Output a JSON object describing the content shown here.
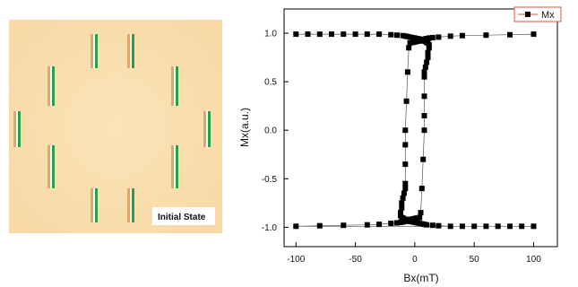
{
  "simulation": {
    "label": "Initial State",
    "background_color": "#f8d9a6",
    "bar_green": "#2f9e4a",
    "bar_highlight": "#ffffff",
    "bar_shadow": "#dba96a"
  },
  "chart_data": {
    "type": "scatter",
    "title": "",
    "xlabel": "Bx(mT)",
    "ylabel": "Mx(a.u.)",
    "xlim": [
      -110,
      120
    ],
    "ylim": [
      -1.2,
      1.25
    ],
    "xticks": [
      -100,
      -50,
      0,
      50,
      100
    ],
    "yticks": [
      -1.0,
      -0.5,
      0.0,
      0.5,
      1.0
    ],
    "x_tick_labels": [
      "-100",
      "-50",
      "0",
      "50",
      "100"
    ],
    "y_tick_labels": [
      "-1.0",
      "-0.5",
      "0.0",
      "0.5",
      "1.0"
    ],
    "legend_position": "top-right",
    "grid": false,
    "series": [
      {
        "name": "Mx",
        "color": "#000000",
        "line_color": "#e0504f",
        "marker": "square",
        "x": [
          100,
          80,
          60,
          40,
          30,
          20,
          15,
          12,
          10,
          9,
          8,
          7,
          6,
          5,
          4,
          2,
          0,
          -2,
          -4,
          -5,
          -6,
          -7,
          -8,
          -8,
          -8,
          -8,
          -8,
          -9,
          -10,
          -11,
          -11,
          -12,
          -12,
          -11,
          -10,
          -10,
          -9,
          -8,
          -7,
          -6,
          -5,
          -4,
          -2,
          0,
          2,
          4,
          6,
          8,
          10,
          15,
          20,
          30,
          40,
          50,
          60,
          70,
          80,
          90,
          100,
          -100,
          -80,
          -60,
          -40,
          -30,
          -20,
          -15,
          -12,
          -10,
          -9,
          -8,
          -7,
          -6,
          -5,
          -4,
          -2,
          0,
          2,
          4,
          5,
          6,
          7,
          8,
          8,
          8,
          8,
          8,
          9,
          10,
          11,
          11,
          12,
          12,
          11,
          10,
          10,
          9,
          8,
          7,
          6,
          5,
          4,
          2,
          0,
          -2,
          -4,
          -6,
          -8,
          -10,
          -15,
          -20,
          -30,
          -40,
          -50,
          -60,
          -70,
          -80,
          -90,
          -100
        ],
        "y": [
          0.99,
          0.985,
          0.98,
          0.975,
          0.97,
          0.96,
          0.955,
          0.95,
          0.945,
          0.94,
          0.935,
          0.93,
          0.93,
          0.925,
          0.92,
          0.915,
          0.91,
          0.905,
          0.9,
          0.85,
          0.6,
          0.3,
          0.0,
          -0.15,
          -0.35,
          -0.55,
          -0.6,
          -0.65,
          -0.7,
          -0.75,
          -0.8,
          -0.85,
          -0.88,
          -0.9,
          -0.905,
          -0.91,
          -0.915,
          -0.92,
          -0.925,
          -0.93,
          -0.935,
          -0.94,
          -0.945,
          -0.95,
          -0.955,
          -0.96,
          -0.965,
          -0.97,
          -0.975,
          -0.98,
          -0.985,
          -0.99,
          -0.99,
          -0.99,
          -0.99,
          -0.99,
          -0.99,
          -0.99,
          -0.99,
          -0.99,
          -0.985,
          -0.98,
          -0.975,
          -0.97,
          -0.96,
          -0.955,
          -0.95,
          -0.945,
          -0.94,
          -0.935,
          -0.93,
          -0.93,
          -0.925,
          -0.92,
          -0.915,
          -0.91,
          -0.905,
          -0.9,
          -0.85,
          -0.6,
          -0.3,
          0.0,
          0.15,
          0.35,
          0.55,
          0.6,
          0.65,
          0.7,
          0.75,
          0.8,
          0.85,
          0.88,
          0.9,
          0.905,
          0.91,
          0.915,
          0.92,
          0.925,
          0.93,
          0.935,
          0.94,
          0.945,
          0.95,
          0.955,
          0.96,
          0.965,
          0.97,
          0.975,
          0.98,
          0.985,
          0.99,
          0.99,
          0.99,
          0.99,
          0.99,
          0.99,
          0.99,
          0.99
        ]
      }
    ]
  }
}
